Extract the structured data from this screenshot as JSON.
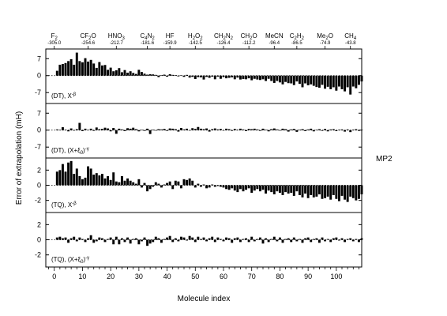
{
  "chart_data": {
    "type": "bar",
    "xlabel": "Molecule index",
    "ylabel": "Error of extrapolation (mH)",
    "side_label": "MP2",
    "x_ticks": [
      0,
      10,
      20,
      30,
      40,
      50,
      60,
      70,
      80,
      90,
      100
    ],
    "x_range": [
      -3,
      109
    ],
    "top_labels": [
      {
        "x": 0,
        "base": "F",
        "sub": "2",
        "rest": "",
        "energy": "-305.0"
      },
      {
        "x": 12,
        "base": "CF",
        "sub": "2",
        "rest": "O",
        "energy": "-254.6"
      },
      {
        "x": 22,
        "base": "HNO",
        "sub": "3",
        "rest": "",
        "energy": "-212.7"
      },
      {
        "x": 33,
        "base": "C",
        "sub": "4",
        "rest": "N",
        "sub2": "2",
        "energy": "-181.6"
      },
      {
        "x": 41,
        "base": "HF",
        "sub": "",
        "rest": "",
        "energy": "-159.9"
      },
      {
        "x": 50,
        "base": "H",
        "sub": "2",
        "rest": "O",
        "sub2": "2",
        "energy": "-142.5"
      },
      {
        "x": 60,
        "base": "CH",
        "sub": "2",
        "rest": "N",
        "sub2": "2",
        "energy": "-126.4"
      },
      {
        "x": 69,
        "base": "CH",
        "sub": "2",
        "rest": "O",
        "energy": "-112.2"
      },
      {
        "x": 78,
        "base": "MeCN",
        "sub": "",
        "rest": "",
        "energy": "-96.4"
      },
      {
        "x": 86,
        "base": "C",
        "sub": "2",
        "rest": "H",
        "sub2": "2",
        "energy": "-86.5"
      },
      {
        "x": 96,
        "base": "Me",
        "sub": "2",
        "rest": "O",
        "energy": "-74.9"
      },
      {
        "x": 105,
        "base": "CH",
        "sub": "4",
        "rest": "",
        "energy": "-43.8"
      }
    ],
    "panels": [
      {
        "annotation_pre": "(DT), X",
        "annotation_sup": "-β",
        "annotation_sub": "",
        "annotation_post": "",
        "ylim": [
          -11.5,
          11
        ],
        "yticks": [
          7,
          0,
          -7
        ],
        "values": [
          2,
          4.5,
          4.8,
          5.2,
          6,
          6.8,
          4.5,
          9.5,
          6,
          5.5,
          7.2,
          5.8,
          6.5,
          5,
          3.2,
          5.6,
          4.2,
          4.4,
          2.4,
          3.3,
          1.8,
          2.2,
          3.1,
          1.4,
          2.3,
          1.2,
          1.8,
          1.1,
          0.7,
          2.4,
          1.5,
          0.8,
          0.4,
          0.6,
          0.5,
          0.3,
          -0.6,
          0.2,
          0.4,
          -0.4,
          0.6,
          0.3,
          0.2,
          -0.3,
          0.1,
          -0.5,
          0.3,
          -0.8,
          -0.5,
          -1.4,
          -0.6,
          -0.7,
          -1.6,
          -0.5,
          -0.9,
          -0.4,
          -1.5,
          -0.4,
          -1.3,
          -0.6,
          -1.1,
          -0.9,
          -0.7,
          -1.5,
          -0.8,
          -1.6,
          -1.4,
          -1.5,
          -1.1,
          -1.9,
          -1.3,
          -1.6,
          -1.8,
          -1.5,
          -2.2,
          -1.3,
          -2.2,
          -3.0,
          -2.2,
          -2.8,
          -3.6,
          -2.6,
          -3.1,
          -3.2,
          -3.9,
          -2.4,
          -3.4,
          -4.8,
          -3.2,
          -4.0,
          -3.6,
          -4.2,
          -4.7,
          -5.0,
          -3.8,
          -5.4,
          -4.6,
          -5.6,
          -4.8,
          -6.2,
          -4.5,
          -5.6,
          -6.5,
          -4.8,
          -7.8,
          -4.5,
          -5.2,
          -3.8,
          -2.4
        ]
      },
      {
        "annotation_pre": "(DT), (X+ξ",
        "annotation_sub": "0",
        "annotation_post": ")",
        "annotation_sup": "-γ",
        "ylim": [
          -11.5,
          11
        ],
        "yticks": [
          7,
          0,
          -7
        ],
        "values": [
          0.3,
          0.1,
          1.2,
          0.2,
          -0.5,
          0.7,
          -0.2,
          0.4,
          3.0,
          -0.4,
          0.6,
          0.1,
          0.6,
          -0.3,
          1.1,
          0.4,
          0.5,
          1.0,
          0.7,
          -0.5,
          0.9,
          -1.5,
          0.6,
          0.3,
          -0.4,
          0.8,
          0.6,
          1.0,
          0.4,
          -0.5,
          0.1,
          -0.3,
          0.6,
          -1.6,
          0.2,
          -0.2,
          0.4,
          0.3,
          0.5,
          -0.3,
          0.7,
          0.6,
          0.4,
          -0.6,
          0.9,
          0.3,
          0.6,
          -0.1,
          0.8,
          0.5,
          1.3,
          0.6,
          0.4,
          0.7,
          -0.6,
          0.4,
          0.7,
          0.3,
          0.5,
          -0.2,
          0.6,
          0.4,
          -0.3,
          0.5,
          0.2,
          0.6,
          0.3,
          -0.4,
          0.5,
          0.4,
          0.6,
          0.3,
          -0.3,
          0.6,
          0.2,
          -0.5,
          0.4,
          0.7,
          0.3,
          -0.2,
          0.6,
          0.4,
          -0.6,
          0.3,
          0.5,
          -0.7,
          0.2,
          0.4,
          -0.4,
          0.3,
          0.6,
          -0.5,
          0.2,
          0.4,
          -0.3,
          0.5,
          -0.5,
          0.3,
          0.4,
          -0.4,
          0.2,
          0.3,
          -0.6,
          0.3,
          -0.8,
          0.2,
          0.4,
          -0.3,
          0.1
        ]
      },
      {
        "annotation_pre": "(TQ), X",
        "annotation_sup": "-β",
        "annotation_sub": "",
        "annotation_post": "",
        "ylim": [
          -3.6,
          3.6
        ],
        "yticks": [
          2,
          0,
          -2
        ],
        "values": [
          1.8,
          2.0,
          2.8,
          1.8,
          3.0,
          3.2,
          1.5,
          2.2,
          1.2,
          0.8,
          1.0,
          2.5,
          2.2,
          1.4,
          1.6,
          1.3,
          1.5,
          0.9,
          1.2,
          0.7,
          1.7,
          0.5,
          0.4,
          1.2,
          0.6,
          0.9,
          0.6,
          0.4,
          0.2,
          0.8,
          -0.3,
          0.3,
          -0.8,
          -0.5,
          -0.2,
          0.4,
          0.2,
          -0.3,
          0.1,
          0.3,
          0.5,
          -0.5,
          0.6,
          0.5,
          -0.4,
          0.8,
          0.7,
          0.9,
          0.6,
          -0.3,
          0.2,
          -0.2,
          0.1,
          -0.4,
          -0.3,
          0.1,
          -0.2,
          -0.1,
          -0.2,
          -0.3,
          -0.5,
          -0.6,
          -0.4,
          -0.7,
          -0.9,
          -0.5,
          -0.8,
          -0.6,
          -0.4,
          -1.0,
          -0.7,
          -0.5,
          -0.8,
          -0.6,
          -1.1,
          -0.7,
          -0.9,
          -1.2,
          -0.8,
          -1.0,
          -1.3,
          -0.9,
          -1.1,
          -1.0,
          -1.4,
          -0.8,
          -1.3,
          -1.6,
          -1.1,
          -1.7,
          -1.3,
          -1.6,
          -1.5,
          -1.2,
          -1.8,
          -1.7,
          -1.5,
          -1.9,
          -1.3,
          -1.8,
          -2.1,
          -1.4,
          -1.9,
          -2.2,
          -1.5,
          -1.7,
          -2.0,
          -1.8,
          -1.2
        ]
      },
      {
        "annotation_pre": "(TQ), (X+ξ",
        "annotation_sub": "0",
        "annotation_post": ")",
        "annotation_sup": "-γ",
        "ylim": [
          -3.6,
          3.6
        ],
        "yticks": [
          2,
          0,
          -2
        ],
        "values": [
          0.3,
          0.4,
          0.2,
          0.3,
          -0.4,
          0.2,
          0.4,
          -0.2,
          0.3,
          0.1,
          -0.3,
          0.2,
          0.6,
          -0.4,
          -0.2,
          0.3,
          0.2,
          -0.3,
          0.1,
          0.3,
          -0.6,
          0.4,
          -0.6,
          0.2,
          -0.3,
          0.3,
          -0.5,
          0.1,
          0.2,
          -0.6,
          -0.2,
          0.3,
          -0.8,
          -0.5,
          -0.3,
          0.4,
          0.2,
          -0.4,
          0.1,
          0.3,
          0.5,
          -0.3,
          0.2,
          -0.2,
          0.4,
          0.3,
          -0.1,
          0.5,
          0.3,
          -0.3,
          0.4,
          0.1,
          0.3,
          -0.2,
          0.2,
          0.4,
          -0.3,
          0.3,
          0.1,
          -0.2,
          0.3,
          0.2,
          -0.4,
          0.2,
          0.3,
          -0.3,
          0.1,
          0.2,
          -0.3,
          0.4,
          -0.2,
          0.1,
          0.3,
          -0.5,
          0.2,
          -0.3,
          0.1,
          0.4,
          -0.2,
          0.3,
          -0.4,
          0.1,
          0.2,
          -0.3,
          0.3,
          -0.2,
          0.1,
          -0.4,
          0.2,
          0.3,
          -0.3,
          0.1,
          0.2,
          -0.4,
          0.3,
          -0.2,
          0.1,
          -0.3,
          0.2,
          0.3,
          -0.1,
          0.2,
          -0.3,
          0.1,
          0.2,
          -0.2,
          0.1,
          -0.3,
          0.2
        ]
      }
    ]
  }
}
